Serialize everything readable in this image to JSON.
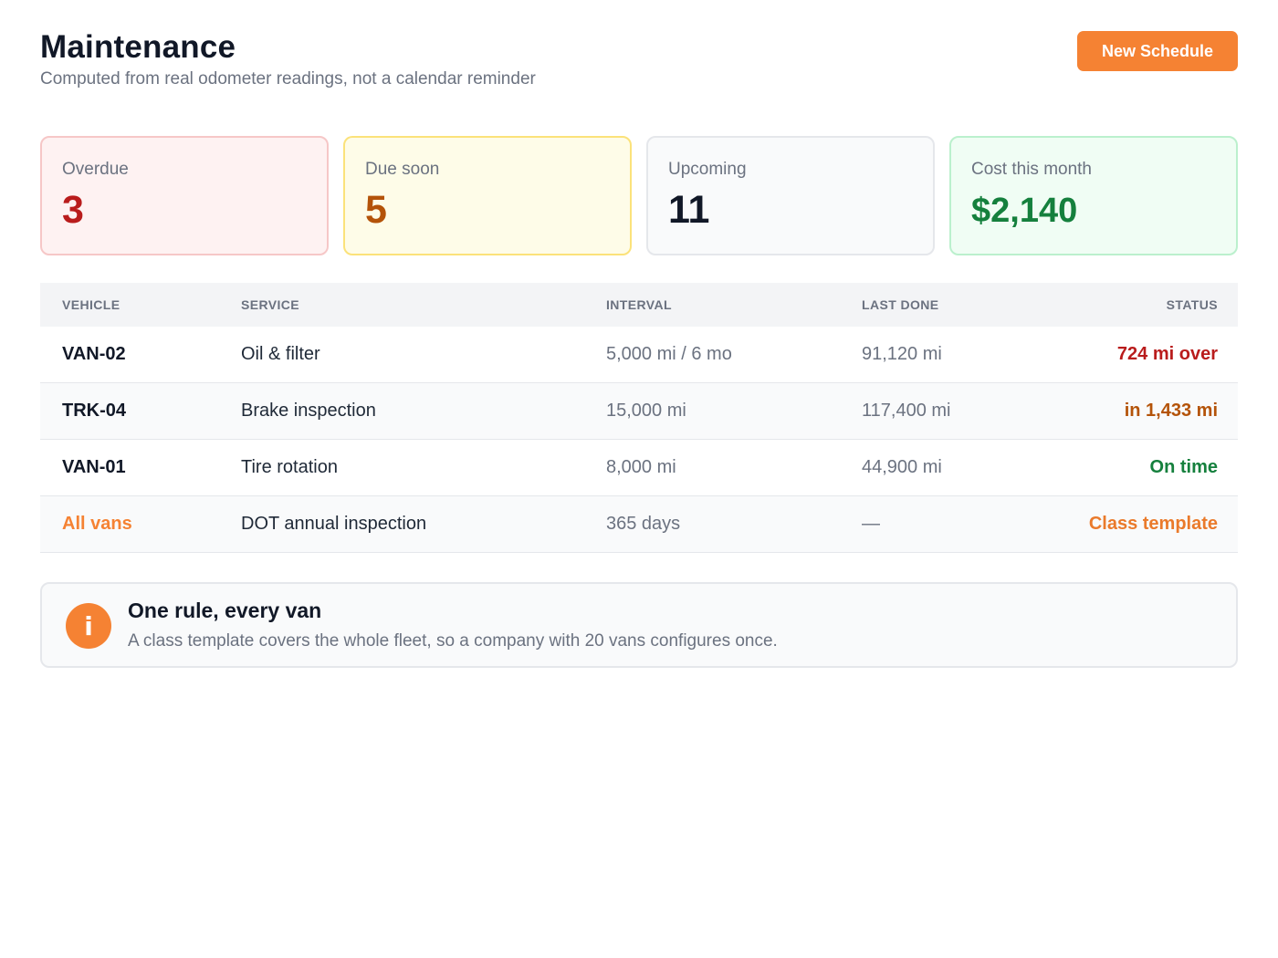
{
  "header": {
    "title": "Maintenance",
    "subtitle": "Computed from real odometer readings, not a calendar reminder",
    "new_button_label": "New Schedule"
  },
  "stats": [
    {
      "label": "Overdue",
      "value": "3"
    },
    {
      "label": "Due soon",
      "value": "5"
    },
    {
      "label": "Upcoming",
      "value": "11"
    },
    {
      "label": "Cost this month",
      "value": "$2,140"
    }
  ],
  "table": {
    "columns": [
      "VEHICLE",
      "SERVICE",
      "INTERVAL",
      "LAST DONE",
      "STATUS"
    ],
    "rows": [
      {
        "vehicle": "VAN-02",
        "service": "Oil & filter",
        "interval": "5,000 mi / 6 mo",
        "last_done": "91,120 mi",
        "status": "724 mi over"
      },
      {
        "vehicle": "TRK-04",
        "service": "Brake inspection",
        "interval": "15,000 mi",
        "last_done": "117,400 mi",
        "status": "in 1,433 mi"
      },
      {
        "vehicle": "VAN-01",
        "service": "Tire rotation",
        "interval": "8,000 mi",
        "last_done": "44,900 mi",
        "status": "On time"
      },
      {
        "vehicle": "All vans",
        "service": "DOT annual inspection",
        "interval": "365 days",
        "last_done": "—",
        "status": "Class template"
      }
    ]
  },
  "info": {
    "icon": "info-icon",
    "icon_glyph": "i",
    "title": "One rule, every van",
    "body": "A class template covers the whole fleet, so a company with 20 vans configures once."
  },
  "colors": {
    "accent": "#f58233",
    "overdue": "#b91c1c",
    "due_soon": "#b45309",
    "on_time": "#15803d"
  }
}
